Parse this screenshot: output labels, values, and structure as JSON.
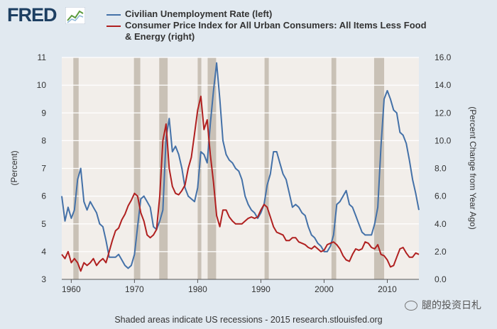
{
  "logo": {
    "text": "FRED"
  },
  "footer": {
    "note": "Shaded areas indicate US recessions - 2015 research.stlouisfed.org"
  },
  "watermark": {
    "text": "腿的投资日札"
  },
  "colors": {
    "unemployment": "#4471a8",
    "cpi": "#b02020",
    "recession": "#c9c1b6",
    "plot_bg": "#f2eeea"
  },
  "chart_data": {
    "type": "line",
    "legend": [
      "Civilian Unemployment Rate (left)",
      "Consumer Price Index for All Urban Consumers: All Items Less Food",
      "& Energy (right)"
    ],
    "ylabel_left": "(Percent)",
    "ylabel_right": "(Percent Change from Year Ago)",
    "x_range": [
      1958.5,
      2015
    ],
    "xticks": [
      1960,
      1970,
      1980,
      1990,
      2000,
      2010
    ],
    "ylim_left": [
      3,
      11
    ],
    "yticks_left": [
      3,
      4,
      5,
      6,
      7,
      8,
      9,
      10,
      11
    ],
    "ylim_right": [
      0,
      16
    ],
    "yticks_right": [
      "0.0",
      "2.0",
      "4.0",
      "6.0",
      "8.0",
      "10.0",
      "12.0",
      "14.0",
      "16.0"
    ],
    "recessions": [
      [
        1960.33,
        1961.17
      ],
      [
        1969.92,
        1970.92
      ],
      [
        1973.92,
        1975.25
      ],
      [
        1980.0,
        1980.58
      ],
      [
        1981.58,
        1982.92
      ],
      [
        1990.58,
        1991.25
      ],
      [
        2001.17,
        2001.92
      ],
      [
        2007.92,
        2009.5
      ]
    ],
    "series": [
      {
        "name": "Civilian Unemployment Rate (left)",
        "axis": "left",
        "x": [
          1958.5,
          1959.0,
          1959.5,
          1960.0,
          1960.5,
          1961.0,
          1961.5,
          1962.0,
          1962.5,
          1963.0,
          1963.5,
          1964.0,
          1964.5,
          1965.0,
          1965.5,
          1966.0,
          1966.5,
          1967.0,
          1967.5,
          1968.0,
          1968.5,
          1969.0,
          1969.5,
          1970.0,
          1970.5,
          1971.0,
          1971.5,
          1972.0,
          1972.5,
          1973.0,
          1973.5,
          1974.0,
          1974.5,
          1975.0,
          1975.5,
          1976.0,
          1976.5,
          1977.0,
          1977.5,
          1978.0,
          1978.5,
          1979.0,
          1979.5,
          1980.0,
          1980.5,
          1981.0,
          1981.5,
          1982.0,
          1982.5,
          1983.0,
          1983.5,
          1984.0,
          1984.5,
          1985.0,
          1985.5,
          1986.0,
          1986.5,
          1987.0,
          1987.5,
          1988.0,
          1988.5,
          1989.0,
          1989.5,
          1990.0,
          1990.5,
          1991.0,
          1991.5,
          1992.0,
          1992.5,
          1993.0,
          1993.5,
          1994.0,
          1994.5,
          1995.0,
          1995.5,
          1996.0,
          1996.5,
          1997.0,
          1997.5,
          1998.0,
          1998.5,
          1999.0,
          1999.5,
          2000.0,
          2000.5,
          2001.0,
          2001.5,
          2002.0,
          2002.5,
          2003.0,
          2003.5,
          2004.0,
          2004.5,
          2005.0,
          2005.5,
          2006.0,
          2006.5,
          2007.0,
          2007.5,
          2008.0,
          2008.5,
          2009.0,
          2009.5,
          2010.0,
          2010.5,
          2011.0,
          2011.5,
          2012.0,
          2012.5,
          2013.0,
          2013.5,
          2014.0,
          2014.5,
          2015.0
        ],
        "values": [
          6.0,
          5.1,
          5.6,
          5.2,
          5.5,
          6.6,
          7.0,
          5.8,
          5.5,
          5.8,
          5.6,
          5.4,
          5.0,
          4.9,
          4.4,
          3.8,
          3.8,
          3.8,
          3.9,
          3.7,
          3.5,
          3.4,
          3.5,
          3.9,
          4.9,
          5.9,
          6.0,
          5.8,
          5.6,
          4.9,
          4.8,
          5.1,
          5.5,
          8.1,
          8.8,
          7.6,
          7.8,
          7.5,
          7.0,
          6.3,
          6.0,
          5.9,
          5.8,
          6.3,
          7.6,
          7.5,
          7.2,
          8.6,
          9.8,
          10.8,
          9.5,
          8.0,
          7.5,
          7.3,
          7.2,
          7.0,
          6.9,
          6.6,
          6.0,
          5.7,
          5.5,
          5.4,
          5.2,
          5.4,
          5.7,
          6.4,
          6.8,
          7.6,
          7.6,
          7.2,
          6.8,
          6.6,
          6.1,
          5.6,
          5.7,
          5.6,
          5.4,
          5.3,
          4.9,
          4.6,
          4.5,
          4.3,
          4.2,
          4.0,
          4.0,
          4.2,
          4.6,
          5.7,
          5.8,
          6.0,
          6.2,
          5.7,
          5.6,
          5.3,
          5.0,
          4.7,
          4.6,
          4.6,
          4.6,
          5.0,
          5.6,
          7.8,
          9.5,
          9.8,
          9.5,
          9.1,
          9.0,
          8.3,
          8.2,
          7.9,
          7.3,
          6.6,
          6.1,
          5.5
        ]
      },
      {
        "name": "Consumer Price Index for All Urban Consumers: All Items Less Food & Energy (right)",
        "axis": "right",
        "x": [
          1958.5,
          1959.0,
          1959.5,
          1960.0,
          1960.5,
          1961.0,
          1961.5,
          1962.0,
          1962.5,
          1963.0,
          1963.5,
          1964.0,
          1964.5,
          1965.0,
          1965.5,
          1966.0,
          1966.5,
          1967.0,
          1967.5,
          1968.0,
          1968.5,
          1969.0,
          1969.5,
          1970.0,
          1970.5,
          1971.0,
          1971.5,
          1972.0,
          1972.5,
          1973.0,
          1973.5,
          1974.0,
          1974.5,
          1975.0,
          1975.5,
          1976.0,
          1976.5,
          1977.0,
          1977.5,
          1978.0,
          1978.5,
          1979.0,
          1979.5,
          1980.0,
          1980.5,
          1981.0,
          1981.5,
          1982.0,
          1982.5,
          1983.0,
          1983.5,
          1984.0,
          1984.5,
          1985.0,
          1985.5,
          1986.0,
          1986.5,
          1987.0,
          1987.5,
          1988.0,
          1988.5,
          1989.0,
          1989.5,
          1990.0,
          1990.5,
          1991.0,
          1991.5,
          1992.0,
          1992.5,
          1993.0,
          1993.5,
          1994.0,
          1994.5,
          1995.0,
          1995.5,
          1996.0,
          1996.5,
          1997.0,
          1997.5,
          1998.0,
          1998.5,
          1999.0,
          1999.5,
          2000.0,
          2000.5,
          2001.0,
          2001.5,
          2002.0,
          2002.5,
          2003.0,
          2003.5,
          2004.0,
          2004.5,
          2005.0,
          2005.5,
          2006.0,
          2006.5,
          2007.0,
          2007.5,
          2008.0,
          2008.5,
          2009.0,
          2009.5,
          2010.0,
          2010.5,
          2011.0,
          2011.5,
          2012.0,
          2012.5,
          2013.0,
          2013.5,
          2014.0,
          2014.5,
          2015.0
        ],
        "values": [
          1.8,
          1.5,
          2.0,
          1.2,
          1.5,
          1.2,
          0.6,
          1.2,
          1.0,
          1.2,
          1.5,
          1.0,
          1.3,
          1.5,
          1.2,
          2.0,
          2.8,
          3.5,
          3.7,
          4.3,
          4.7,
          5.3,
          5.7,
          6.2,
          6.0,
          4.8,
          4.2,
          3.2,
          3.0,
          3.2,
          3.6,
          6.0,
          10.0,
          11.2,
          8.0,
          6.7,
          6.2,
          6.1,
          6.4,
          6.8,
          8.0,
          8.8,
          10.5,
          12.2,
          13.2,
          10.8,
          11.5,
          9.0,
          7.0,
          4.6,
          3.8,
          5.0,
          5.0,
          4.5,
          4.2,
          4.0,
          4.0,
          4.0,
          4.2,
          4.4,
          4.5,
          4.4,
          4.5,
          5.0,
          5.4,
          5.2,
          4.5,
          3.8,
          3.4,
          3.3,
          3.2,
          2.8,
          2.8,
          3.0,
          3.0,
          2.7,
          2.6,
          2.5,
          2.3,
          2.2,
          2.4,
          2.2,
          2.0,
          2.1,
          2.5,
          2.6,
          2.7,
          2.5,
          2.2,
          1.7,
          1.4,
          1.3,
          1.8,
          2.2,
          2.1,
          2.2,
          2.7,
          2.6,
          2.3,
          2.2,
          2.5,
          1.8,
          1.7,
          1.4,
          0.9,
          1.0,
          1.6,
          2.2,
          2.3,
          1.9,
          1.6,
          1.6,
          1.9,
          1.8
        ]
      }
    ]
  }
}
